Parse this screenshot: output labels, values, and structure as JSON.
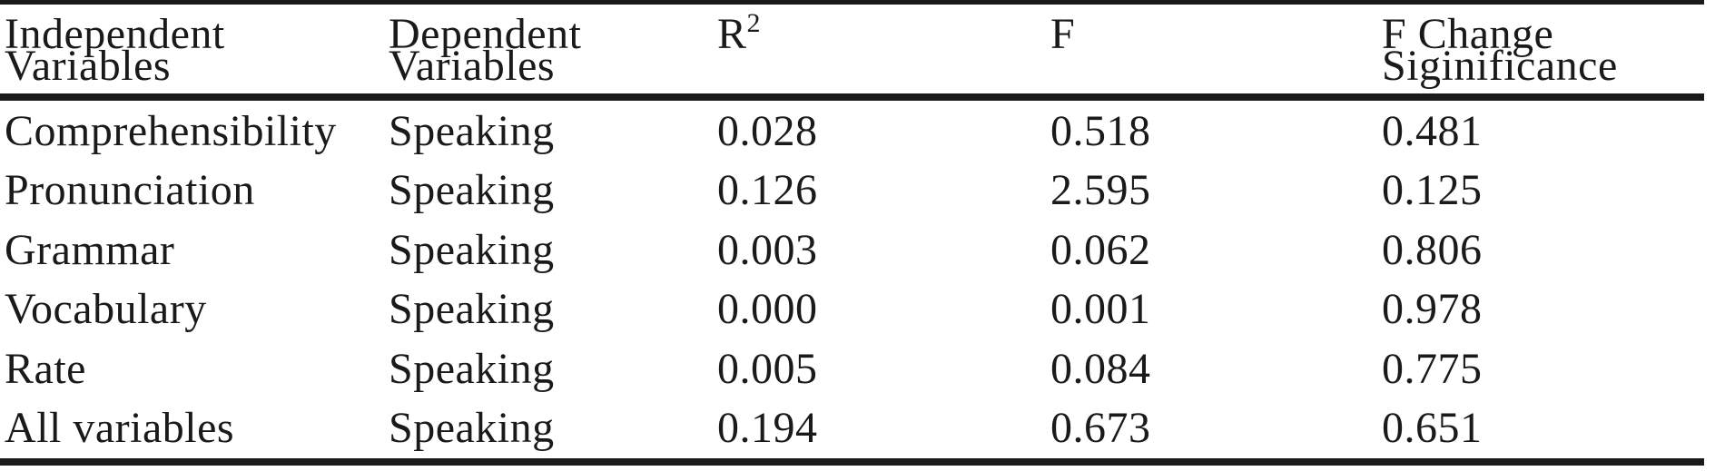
{
  "colors": {
    "background": "#ffffff",
    "text": "#1a1a1a",
    "rule": "#1a1a1a"
  },
  "table": {
    "header": {
      "col1_line1": "Independent",
      "col1_line2": "Variables",
      "col2_line1": "Dependent",
      "col2_line2": "Variables",
      "col3_base": "R",
      "col3_sup": "2",
      "col4": "F",
      "col5_line1": "F Change",
      "col5_line2": "Siginificance"
    },
    "rows": [
      [
        "Comprehensibility",
        "Speaking",
        "0.028",
        "0.518",
        "0.481"
      ],
      [
        "Pronunciation",
        "Speaking",
        "0.126",
        "2.595",
        "0.125"
      ],
      [
        "Grammar",
        "Speaking",
        "0.003",
        "0.062",
        "0.806"
      ],
      [
        "Vocabulary",
        "Speaking",
        "0.000",
        "0.001",
        "0.978"
      ],
      [
        "Rate",
        "Speaking",
        "0.005",
        "0.084",
        "0.775"
      ],
      [
        "All variables",
        "Speaking",
        "0.194",
        "0.673",
        "0.651"
      ]
    ]
  },
  "chart_data": {
    "type": "table",
    "title": "",
    "columns": [
      "Independent Variables",
      "Dependent Variables",
      "R2",
      "F",
      "F Change Siginificance"
    ],
    "rows": [
      {
        "independent_variable": "Comprehensibility",
        "dependent_variable": "Speaking",
        "r_squared": 0.028,
        "f": 0.518,
        "f_change_significance": 0.481
      },
      {
        "independent_variable": "Pronunciation",
        "dependent_variable": "Speaking",
        "r_squared": 0.126,
        "f": 2.595,
        "f_change_significance": 0.125
      },
      {
        "independent_variable": "Grammar",
        "dependent_variable": "Speaking",
        "r_squared": 0.003,
        "f": 0.062,
        "f_change_significance": 0.806
      },
      {
        "independent_variable": "Vocabulary",
        "dependent_variable": "Speaking",
        "r_squared": 0.0,
        "f": 0.001,
        "f_change_significance": 0.978
      },
      {
        "independent_variable": "Rate",
        "dependent_variable": "Speaking",
        "r_squared": 0.005,
        "f": 0.084,
        "f_change_significance": 0.775
      },
      {
        "independent_variable": "All variables",
        "dependent_variable": "Speaking",
        "r_squared": 0.194,
        "f": 0.673,
        "f_change_significance": 0.651
      }
    ],
    "layout": {
      "grid": false,
      "rules": [
        "top",
        "below-header",
        "bottom"
      ],
      "column_alignment": "left"
    }
  }
}
